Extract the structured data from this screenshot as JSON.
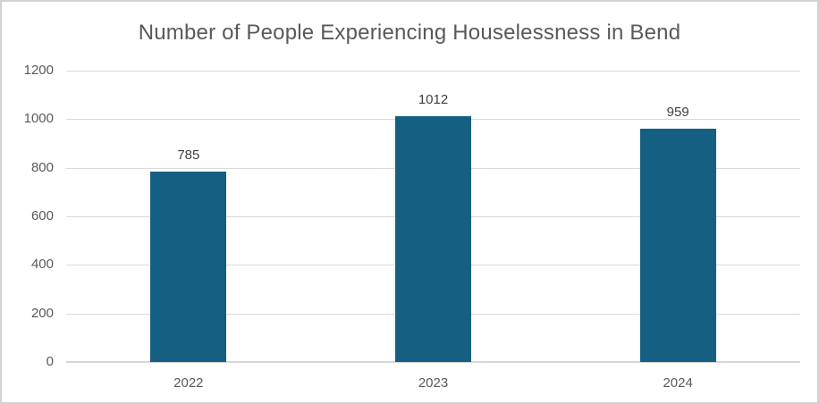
{
  "chart_data": {
    "type": "bar",
    "title": "Number of People Experiencing Houselessness in Bend",
    "categories": [
      "2022",
      "2023",
      "2024"
    ],
    "values": [
      785,
      1012,
      959
    ],
    "data_labels": [
      "785",
      "1012",
      "959"
    ],
    "y_ticks": [
      0,
      200,
      400,
      600,
      800,
      1000,
      1200
    ],
    "ylim": [
      0,
      1200
    ],
    "xlabel": "",
    "ylabel": "",
    "grid": true,
    "legend_position": "none",
    "colors": {
      "bar": "#156082",
      "gridline": "#d9d9d9",
      "axis_line": "#d6d6d6",
      "title_text": "#595959",
      "axis_text": "#595959",
      "data_label_text": "#404040",
      "border": "#d2d2d2",
      "background": "#ffffff"
    }
  }
}
